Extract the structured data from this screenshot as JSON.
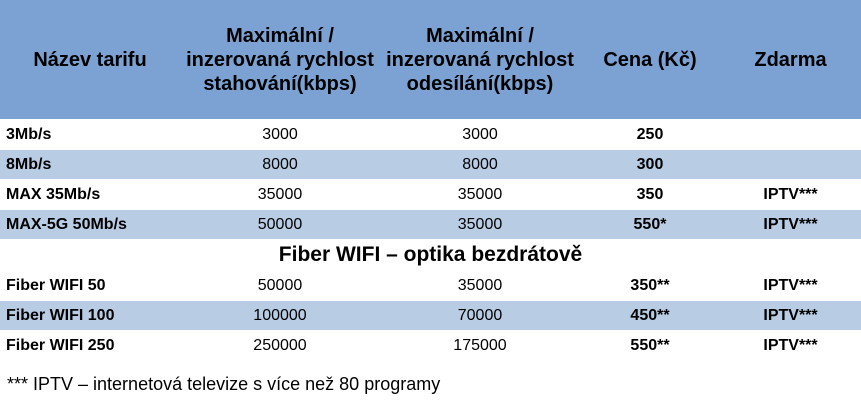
{
  "table": {
    "headers": {
      "name": "Název tarifu",
      "download": "Maximální / inzerovaná rychlost stahování(kbps)",
      "upload": "Maximální / inzerovaná rychlost odesílání(kbps)",
      "price": "Cena (Kč)",
      "free": "Zdarma"
    },
    "rows": [
      {
        "name": "3Mb/s",
        "download": "3000",
        "upload": "3000",
        "price": "250",
        "free": ""
      },
      {
        "name": "8Mb/s",
        "download": "8000",
        "upload": "8000",
        "price": "300",
        "free": ""
      },
      {
        "name": "MAX 35Mb/s",
        "download": "35000",
        "upload": "35000",
        "price": "350",
        "free": "IPTV***"
      },
      {
        "name": "MAX-5G 50Mb/s",
        "download": "50000",
        "upload": "35000",
        "price": "550*",
        "free": "IPTV***"
      }
    ],
    "section_title": "Fiber WIFI – optika bezdrátově",
    "fiber_rows": [
      {
        "name": "Fiber WIFI 50",
        "download": "50000",
        "upload": "35000",
        "price": "350**",
        "free": "IPTV***"
      },
      {
        "name": "Fiber WIFI 100",
        "download": "100000",
        "upload": "70000",
        "price": "450**",
        "free": "IPTV***"
      },
      {
        "name": "Fiber WIFI 250",
        "download": "250000",
        "upload": "175000",
        "price": "550**",
        "free": "IPTV***"
      }
    ]
  },
  "footnote": "*** IPTV – internetová televize s více než 80 programy"
}
